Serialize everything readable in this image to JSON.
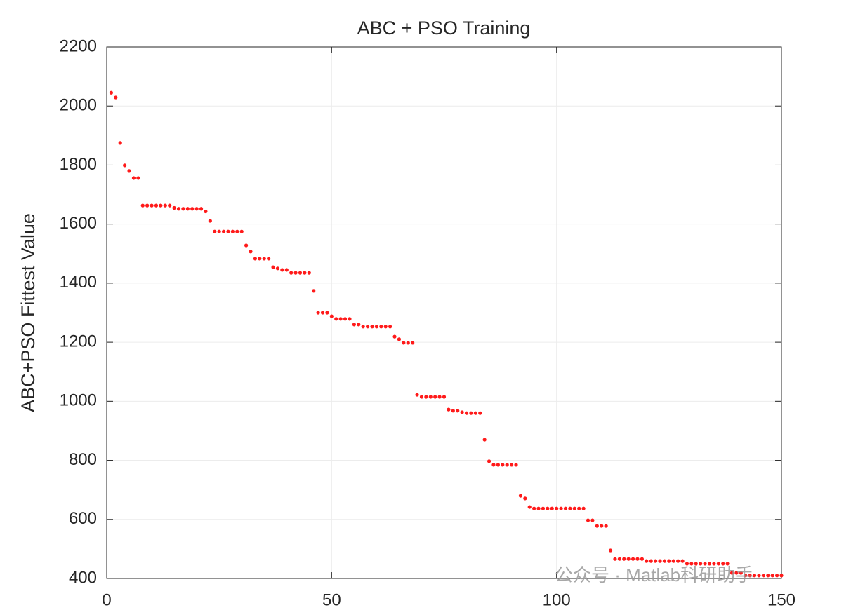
{
  "chart_data": {
    "type": "scatter",
    "title": "ABC + PSO Training",
    "y_label": "ABC+PSO Fittest Value",
    "annotation": "公众号 · Matlab科研助手",
    "series": [
      {
        "name": "ABC+PSO",
        "color": "#ff1a1a",
        "x": [
          1,
          2,
          3,
          4,
          5,
          6,
          7,
          8,
          9,
          10,
          11,
          12,
          13,
          14,
          15,
          16,
          17,
          18,
          19,
          20,
          21,
          22,
          23,
          24,
          25,
          26,
          27,
          28,
          29,
          30,
          31,
          32,
          33,
          34,
          35,
          36,
          37,
          38,
          39,
          40,
          41,
          42,
          43,
          44,
          45,
          46,
          47,
          48,
          49,
          50,
          51,
          52,
          53,
          54,
          55,
          56,
          57,
          58,
          59,
          60,
          61,
          62,
          63,
          64,
          65,
          66,
          67,
          68,
          69,
          70,
          71,
          72,
          73,
          74,
          75,
          76,
          77,
          78,
          79,
          80,
          81,
          82,
          83,
          84,
          85,
          86,
          87,
          88,
          89,
          90,
          91,
          92,
          93,
          94,
          95,
          96,
          97,
          98,
          99,
          100,
          101,
          102,
          103,
          104,
          105,
          106,
          107,
          108,
          109,
          110,
          111,
          112,
          113,
          114,
          115,
          116,
          117,
          118,
          119,
          120,
          121,
          122,
          123,
          124,
          125,
          126,
          127,
          128,
          129,
          130,
          131,
          132,
          133,
          134,
          135,
          136,
          137,
          138,
          139,
          140,
          141,
          142,
          143,
          144,
          145,
          146,
          147,
          148,
          149,
          150
        ],
        "values": [
          2045,
          2029,
          1875,
          1799,
          1780,
          1756,
          1756,
          1663,
          1663,
          1663,
          1663,
          1663,
          1663,
          1663,
          1655,
          1652,
          1652,
          1652,
          1652,
          1652,
          1652,
          1643,
          1611,
          1575,
          1575,
          1575,
          1575,
          1575,
          1575,
          1575,
          1528,
          1507,
          1483,
          1483,
          1483,
          1483,
          1454,
          1450,
          1445,
          1445,
          1435,
          1435,
          1435,
          1435,
          1435,
          1374,
          1300,
          1300,
          1300,
          1288,
          1279,
          1279,
          1279,
          1279,
          1260,
          1260,
          1253,
          1253,
          1253,
          1253,
          1253,
          1253,
          1253,
          1219,
          1210,
          1198,
          1198,
          1198,
          1022,
          1015,
          1015,
          1015,
          1015,
          1015,
          1015,
          972,
          968,
          968,
          963,
          960,
          960,
          960,
          960,
          870,
          797,
          785,
          785,
          785,
          785,
          785,
          785,
          680,
          671,
          642,
          637,
          637,
          637,
          637,
          637,
          637,
          637,
          637,
          637,
          637,
          637,
          637,
          597,
          597,
          578,
          578,
          578,
          495,
          466,
          466,
          466,
          466,
          466,
          466,
          466,
          459,
          459,
          459,
          459,
          459,
          459,
          459,
          459,
          459,
          450,
          450,
          450,
          450,
          450,
          450,
          450,
          450,
          450,
          450,
          419,
          419,
          419,
          410,
          410,
          410,
          410,
          410,
          410,
          410,
          410,
          410
        ]
      }
    ],
    "xlim": [
      0,
      150
    ],
    "xticks": [
      0,
      50,
      100,
      150
    ],
    "ylim": [
      400,
      2200
    ],
    "yticks": [
      400,
      600,
      800,
      1000,
      1200,
      1400,
      1600,
      1800,
      2000,
      2200
    ],
    "grid": true
  }
}
